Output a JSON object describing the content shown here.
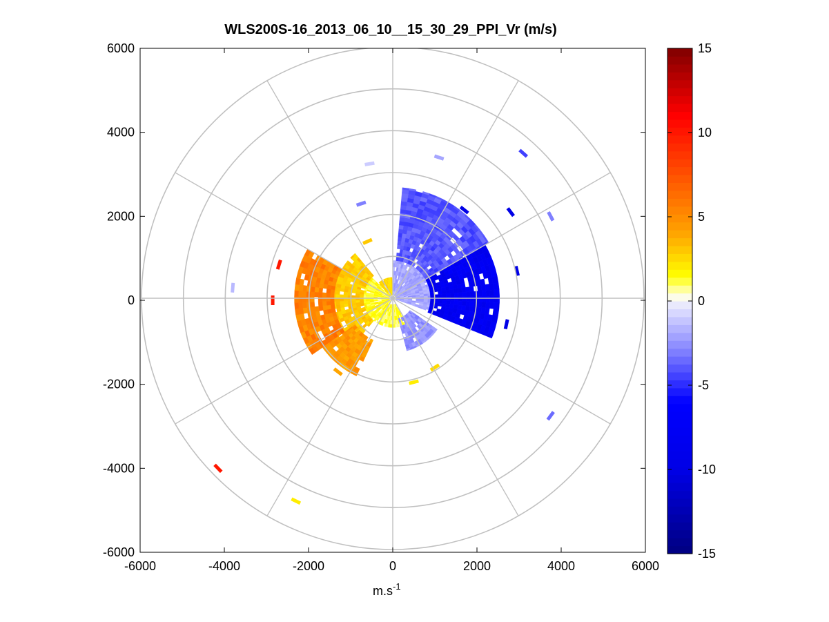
{
  "chart_data": {
    "type": "heatmap",
    "subtype": "polar-ppi",
    "title": "WLS200S-16_2013_06_10__15_30_29_PPI_Vr (m/s)",
    "xlabel_base": "m.s",
    "xlabel_exp": "-1",
    "ylabel": "",
    "xlim": [
      -6000,
      6000
    ],
    "ylim": [
      -6000,
      6000
    ],
    "x_ticks": [
      -6000,
      -4000,
      -2000,
      0,
      2000,
      4000,
      6000
    ],
    "y_ticks": [
      -6000,
      -4000,
      -2000,
      0,
      2000,
      4000,
      6000
    ],
    "x_tick_labels": [
      "-6000",
      "-4000",
      "-2000",
      "0",
      "2000",
      "4000",
      "6000"
    ],
    "y_tick_labels": [
      "-6000",
      "-4000",
      "-2000",
      "0",
      "2000",
      "4000",
      "6000"
    ],
    "polar_grid": {
      "ring_radii": [
        1000,
        2000,
        3000,
        4000,
        5000,
        6000
      ],
      "spoke_angles_deg": [
        0,
        30,
        60,
        90,
        120,
        150,
        180,
        210,
        240,
        270,
        300,
        330
      ]
    },
    "colorbar": {
      "min": -15,
      "max": 15,
      "ticks": [
        15,
        10,
        5,
        0,
        -5,
        -10,
        -15
      ],
      "tick_labels": [
        "15",
        "10",
        "5",
        "0",
        "-5",
        "-10",
        "-15"
      ],
      "colormap": "blue-white-red"
    },
    "regions": [
      {
        "name": "near-north-positive",
        "r": [
          80,
          500
        ],
        "az_from": 315,
        "az_to": 360,
        "value": 2.5
      },
      {
        "name": "near-west-positive",
        "r": [
          80,
          700
        ],
        "az_from": 210,
        "az_to": 315,
        "value": 1.5
      },
      {
        "name": "near-south-positive",
        "r": [
          150,
          700
        ],
        "az_from": 150,
        "az_to": 210,
        "value": 1.2
      },
      {
        "name": "mid-west-positive",
        "r": [
          700,
          1400
        ],
        "az_from": 220,
        "az_to": 320,
        "value": 3.0
      },
      {
        "name": "far-west-positive",
        "r": [
          1400,
          2350
        ],
        "az_from": 235,
        "az_to": 300,
        "value": 5.5
      },
      {
        "name": "southwest-positive",
        "r": [
          1100,
          2050
        ],
        "az_from": 205,
        "az_to": 235,
        "value": 4.5
      },
      {
        "name": "near-northeast-negative",
        "r": [
          80,
          900
        ],
        "az_from": 0,
        "az_to": 110,
        "value": -2.0
      },
      {
        "name": "northeast-negative",
        "r": [
          900,
          2650
        ],
        "az_from": 5,
        "az_to": 60,
        "value": -4.0
      },
      {
        "name": "east-negative",
        "r": [
          900,
          2550
        ],
        "az_from": 60,
        "az_to": 112,
        "value": -8.0
      },
      {
        "name": "southeast-negative",
        "r": [
          500,
          1300
        ],
        "az_from": 125,
        "az_to": 165,
        "value": -2.5
      }
    ],
    "outliers": [
      {
        "x": -2700,
        "y": 850,
        "value": 10
      },
      {
        "x": -2850,
        "y": 0,
        "value": 10
      },
      {
        "x": -3800,
        "y": 300,
        "value": -1.5
      },
      {
        "x": -4150,
        "y": -4000,
        "value": 10
      },
      {
        "x": -2300,
        "y": -4780,
        "value": 2
      },
      {
        "x": 3100,
        "y": 3500,
        "value": -4.5
      },
      {
        "x": 2800,
        "y": 2100,
        "value": -10
      },
      {
        "x": 1700,
        "y": 2150,
        "value": -10
      },
      {
        "x": 3750,
        "y": 2000,
        "value": -3
      },
      {
        "x": 2950,
        "y": 700,
        "value": -10
      },
      {
        "x": 2700,
        "y": -570,
        "value": -10
      },
      {
        "x": 3750,
        "y": -2750,
        "value": -3.5
      },
      {
        "x": 1100,
        "y": 3400,
        "value": -2
      },
      {
        "x": -550,
        "y": 3250,
        "value": -1
      },
      {
        "x": -750,
        "y": 2300,
        "value": -3
      },
      {
        "x": 500,
        "y": -1950,
        "value": 2
      },
      {
        "x": 1000,
        "y": -1600,
        "value": 2.5
      },
      {
        "x": -600,
        "y": 1400,
        "value": 3
      },
      {
        "x": -1300,
        "y": -1700,
        "value": 4
      }
    ]
  }
}
